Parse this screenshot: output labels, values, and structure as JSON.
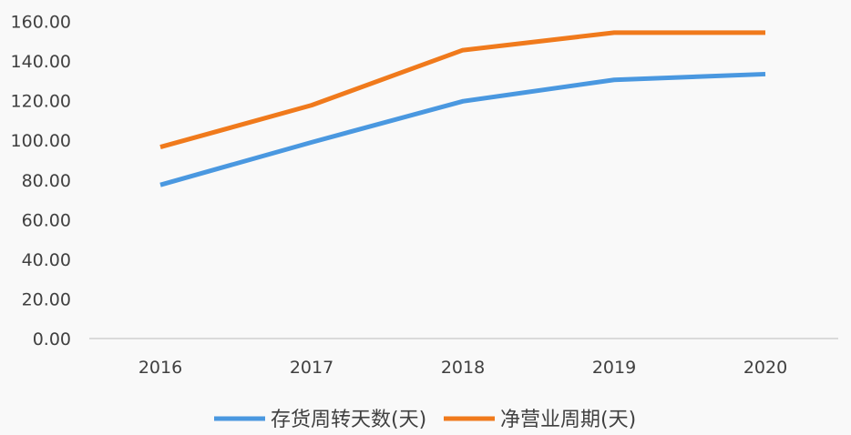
{
  "chart_data": {
    "type": "line",
    "title": "",
    "xlabel": "",
    "ylabel": "",
    "categories": [
      "2016",
      "2017",
      "2018",
      "2019",
      "2020"
    ],
    "ylim": [
      0,
      160
    ],
    "yticks": [
      "0.00",
      "20.00",
      "40.00",
      "60.00",
      "80.00",
      "100.00",
      "120.00",
      "140.00",
      "160.00"
    ],
    "grid": false,
    "legend_position": "bottom",
    "series": [
      {
        "name": "存货周转天数(天)",
        "color": "#4a98e0",
        "values": [
          77.5,
          99.0,
          119.7,
          130.5,
          133.4
        ]
      },
      {
        "name": "净营业周期(天)",
        "color": "#f07a1c",
        "values": [
          96.6,
          117.7,
          145.5,
          154.3,
          154.3
        ]
      }
    ]
  }
}
